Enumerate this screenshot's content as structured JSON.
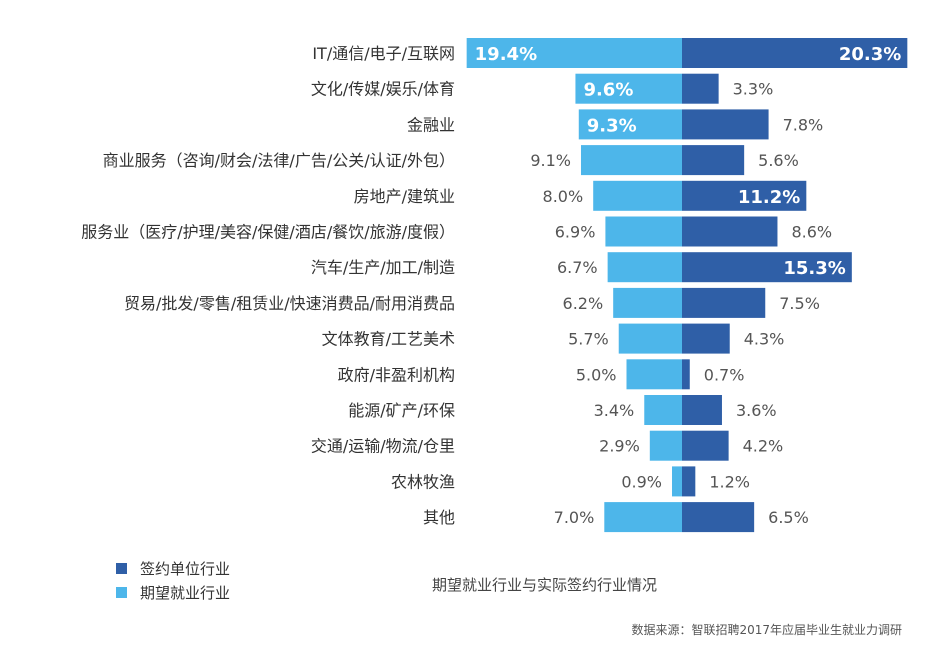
{
  "chart_data": {
    "type": "bar",
    "orientation": "horizontal-diverging",
    "subtitle": "期望就业行业与实际签约行业情况",
    "source": "数据来源：智联招聘2017年应届毕业生就业力调研",
    "categories": [
      "IT/通信/电子/互联网",
      "文化/传媒/娱乐/体育",
      "金融业",
      "商业服务（咨询/财会/法律/广告/公关/认证/外包）",
      "房地产/建筑业",
      "服务业（医疗/护理/美容/保健/酒店/餐饮/旅游/度假）",
      "汽车/生产/加工/制造",
      "贸易/批发/零售/租赁业/快速消费品/耐用消费品",
      "文体教育/工艺美术",
      "政府/非盈利机构",
      "能源/矿产/环保",
      "交通/运输/物流/仓里",
      "农林牧渔",
      "其他"
    ],
    "series": [
      {
        "name": "期望就业行业",
        "color": "#4db6ea",
        "side": "left",
        "values": [
          19.4,
          9.6,
          9.3,
          9.1,
          8.0,
          6.9,
          6.7,
          6.2,
          5.7,
          5.0,
          3.4,
          2.9,
          0.9,
          7.0
        ],
        "labels": [
          "19.4%",
          "9.6%",
          "9.3%",
          "9.1%",
          "8.0%",
          "6.9%",
          "6.7%",
          "6.2%",
          "5.7%",
          "5.0%",
          "3.4%",
          "2.9%",
          "0.9%",
          "7.0%"
        ]
      },
      {
        "name": "签约单位行业",
        "color": "#2f5fa7",
        "side": "right",
        "values": [
          20.3,
          3.3,
          7.8,
          5.6,
          11.2,
          8.6,
          15.3,
          7.5,
          4.3,
          0.7,
          3.6,
          4.2,
          1.2,
          6.5
        ],
        "labels": [
          "20.3%",
          "3.3%",
          "7.8%",
          "5.6%",
          "11.2%",
          "8.6%",
          "15.3%",
          "7.5%",
          "4.3%",
          "0.7%",
          "3.6%",
          "4.2%",
          "1.2%",
          "6.5%"
        ]
      }
    ],
    "legend": {
      "placement": "bottom-left",
      "items": [
        {
          "label": "签约单位行业",
          "color": "#2f5fa7"
        },
        {
          "label": "期望就业行业",
          "color": "#4db6ea"
        }
      ]
    },
    "grid": false
  }
}
